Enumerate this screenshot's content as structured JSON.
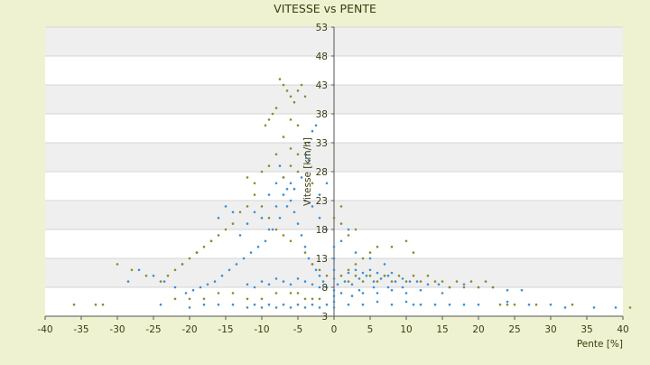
{
  "chart_data": {
    "type": "scatter",
    "title": "VITESSE vs PENTE",
    "xlabel": "Pente [%]",
    "ylabel": "Vitesse [km/h]",
    "xlim": [
      -40,
      40
    ],
    "ylim": [
      3,
      53
    ],
    "x_ticks": [
      -40,
      -35,
      -30,
      -25,
      -20,
      -15,
      -10,
      -5,
      0,
      5,
      10,
      15,
      20,
      25,
      30,
      35,
      40
    ],
    "y_ticks": [
      3,
      8,
      13,
      18,
      23,
      28,
      33,
      38,
      43,
      48,
      53
    ],
    "grid": true,
    "banded_background": true,
    "legend": "none",
    "series": [
      {
        "color": "#3a8fd6",
        "points": [
          [
            -1.0,
            8
          ],
          [
            0.5,
            8.5
          ],
          [
            1.5,
            9
          ],
          [
            2.5,
            8.5
          ],
          [
            3.5,
            9.5
          ],
          [
            4.5,
            10
          ],
          [
            5.5,
            9
          ],
          [
            6.5,
            9.5
          ],
          [
            7.5,
            10
          ],
          [
            8.5,
            9
          ],
          [
            9.5,
            9.5
          ],
          [
            10.5,
            9
          ],
          [
            11.5,
            9
          ],
          [
            13,
            8.5
          ],
          [
            14.5,
            8.5
          ],
          [
            16,
            8
          ],
          [
            18,
            8.5
          ],
          [
            20,
            8
          ],
          [
            22,
            8
          ],
          [
            24,
            7.5
          ],
          [
            26,
            7.5
          ],
          [
            2,
            10.5
          ],
          [
            3,
            11
          ],
          [
            4,
            10.5
          ],
          [
            5,
            11
          ],
          [
            6,
            10.5
          ],
          [
            7,
            10
          ],
          [
            8,
            10.5
          ],
          [
            3.5,
            7.5
          ],
          [
            5.5,
            8
          ],
          [
            7.5,
            8
          ],
          [
            9.5,
            8
          ],
          [
            1,
            7
          ],
          [
            2.5,
            6.5
          ],
          [
            4,
            7
          ],
          [
            6,
            7
          ],
          [
            8,
            7.5
          ],
          [
            10,
            7
          ],
          [
            12,
            7.5
          ],
          [
            15,
            7
          ],
          [
            -1.5,
            9
          ],
          [
            -2,
            10
          ],
          [
            -2.5,
            11
          ],
          [
            -3,
            12
          ],
          [
            -3.5,
            13
          ],
          [
            -4,
            15
          ],
          [
            -4.5,
            17
          ],
          [
            -5,
            19
          ],
          [
            -5.5,
            21
          ],
          [
            -6,
            23
          ],
          [
            -6.5,
            25
          ],
          [
            -7,
            27
          ],
          [
            -7.5,
            29
          ],
          [
            -4,
            31
          ],
          [
            -3.5,
            33
          ],
          [
            -3,
            35
          ],
          [
            -2.5,
            36
          ],
          [
            -3.5,
            30
          ],
          [
            -4.5,
            27
          ],
          [
            -5.5,
            25
          ],
          [
            -6.5,
            22
          ],
          [
            -7.5,
            20
          ],
          [
            -8.5,
            18
          ],
          [
            -9.5,
            16
          ],
          [
            -10.5,
            15
          ],
          [
            -11.5,
            14
          ],
          [
            -12.5,
            13
          ],
          [
            -13.5,
            12
          ],
          [
            -14.5,
            11
          ],
          [
            -15.5,
            10
          ],
          [
            -16.5,
            9
          ],
          [
            -17.5,
            8.5
          ],
          [
            -18.5,
            8
          ],
          [
            -19.5,
            7.5
          ],
          [
            -20.5,
            7
          ],
          [
            -22,
            8
          ],
          [
            -23.5,
            9
          ],
          [
            -25,
            10
          ],
          [
            -27,
            11
          ],
          [
            -28.5,
            9
          ],
          [
            -14,
            21
          ],
          [
            -15,
            22
          ],
          [
            -16,
            20
          ],
          [
            -12,
            19
          ],
          [
            -11,
            21
          ],
          [
            -9,
            24
          ],
          [
            -8,
            26
          ],
          [
            -10,
            20
          ],
          [
            -13,
            17
          ],
          [
            -17,
            16
          ],
          [
            -19,
            14
          ],
          [
            -21,
            12
          ],
          [
            -2,
            8
          ],
          [
            -3,
            8.5
          ],
          [
            -4,
            9
          ],
          [
            -5,
            9.5
          ],
          [
            -6,
            8.5
          ],
          [
            -7,
            9
          ],
          [
            -8,
            9.5
          ],
          [
            -9,
            8.5
          ],
          [
            -10,
            9
          ],
          [
            -11,
            8
          ],
          [
            -12,
            8.5
          ],
          [
            -1,
            5
          ],
          [
            -2,
            4.5
          ],
          [
            -3,
            5
          ],
          [
            -4,
            4.5
          ],
          [
            -5,
            5
          ],
          [
            -6,
            4.5
          ],
          [
            -7,
            5
          ],
          [
            -8,
            4.5
          ],
          [
            -9,
            5
          ],
          [
            -10,
            4.5
          ],
          [
            -11,
            5
          ],
          [
            -12,
            4.5
          ],
          [
            -14,
            5
          ],
          [
            -16,
            5
          ],
          [
            -18,
            5
          ],
          [
            -20,
            4.5
          ],
          [
            -24,
            5
          ],
          [
            0,
            4.5
          ],
          [
            0,
            5.5
          ],
          [
            0,
            6.5
          ],
          [
            0,
            7.5
          ],
          [
            0,
            9.5
          ],
          [
            0,
            11
          ],
          [
            0,
            13
          ],
          [
            0,
            15
          ],
          [
            2,
            5
          ],
          [
            4,
            5
          ],
          [
            6,
            5.5
          ],
          [
            8,
            5
          ],
          [
            10,
            5.5
          ],
          [
            11,
            5
          ],
          [
            12,
            5
          ],
          [
            14,
            5
          ],
          [
            16,
            5
          ],
          [
            18,
            5
          ],
          [
            20,
            5
          ],
          [
            24,
            5.5
          ],
          [
            27,
            5
          ],
          [
            30,
            5
          ],
          [
            32,
            4.5
          ],
          [
            36,
            4.5
          ],
          [
            39,
            4.5
          ],
          [
            3,
            14
          ],
          [
            5,
            13
          ],
          [
            7,
            12
          ],
          [
            2,
            18
          ],
          [
            1,
            16
          ],
          [
            -1,
            18
          ],
          [
            -2,
            20
          ],
          [
            -3,
            22
          ],
          [
            -2,
            24
          ],
          [
            -1,
            26
          ],
          [
            -4,
            23
          ],
          [
            -6,
            26
          ],
          [
            -7,
            24
          ],
          [
            -8,
            22
          ],
          [
            -9,
            18
          ]
        ]
      },
      {
        "color": "#8a8a2e",
        "points": [
          [
            -7.5,
            44
          ],
          [
            -7,
            43
          ],
          [
            -6.5,
            42
          ],
          [
            -6,
            41
          ],
          [
            -5.5,
            40
          ],
          [
            -5,
            42
          ],
          [
            -4.5,
            43
          ],
          [
            -4,
            41
          ],
          [
            -8,
            39
          ],
          [
            -8.5,
            38
          ],
          [
            -9,
            37
          ],
          [
            -9.5,
            36
          ],
          [
            -6,
            37
          ],
          [
            -5,
            36
          ],
          [
            -7,
            34
          ],
          [
            -6,
            32
          ],
          [
            -5,
            31
          ],
          [
            -4,
            33
          ],
          [
            -8,
            31
          ],
          [
            -9,
            29
          ],
          [
            -10,
            28
          ],
          [
            -7,
            27
          ],
          [
            -6,
            29
          ],
          [
            -5,
            28
          ],
          [
            -3,
            26
          ],
          [
            -11,
            24
          ],
          [
            -12,
            22
          ],
          [
            -13,
            21
          ],
          [
            -10,
            22
          ],
          [
            -9,
            20
          ],
          [
            -8,
            18
          ],
          [
            -7,
            17
          ],
          [
            -6,
            16
          ],
          [
            -14,
            19
          ],
          [
            -15,
            18
          ],
          [
            -16,
            17
          ],
          [
            -17,
            16
          ],
          [
            -18,
            15
          ],
          [
            -19,
            14
          ],
          [
            -20,
            13
          ],
          [
            -21,
            12
          ],
          [
            -22,
            11
          ],
          [
            -23,
            10
          ],
          [
            -24,
            9
          ],
          [
            -26,
            10
          ],
          [
            -28,
            11
          ],
          [
            -30,
            12
          ],
          [
            -32,
            5
          ],
          [
            -33,
            5
          ],
          [
            -36,
            5
          ],
          [
            -4,
            14
          ],
          [
            -3,
            12
          ],
          [
            -2,
            11
          ],
          [
            -1,
            10
          ],
          [
            1,
            10
          ],
          [
            2,
            11
          ],
          [
            3,
            12
          ],
          [
            4,
            13
          ],
          [
            5,
            14
          ],
          [
            6,
            15
          ],
          [
            8,
            15
          ],
          [
            10,
            16
          ],
          [
            11,
            14
          ],
          [
            2,
            17
          ],
          [
            3,
            18
          ],
          [
            1,
            19
          ],
          [
            0,
            20
          ],
          [
            1,
            22
          ],
          [
            2,
            9
          ],
          [
            3,
            10
          ],
          [
            4,
            9
          ],
          [
            5,
            10
          ],
          [
            6,
            9
          ],
          [
            7,
            10
          ],
          [
            8,
            9
          ],
          [
            9,
            10
          ],
          [
            10,
            9
          ],
          [
            11,
            10
          ],
          [
            12,
            9
          ],
          [
            13,
            10
          ],
          [
            14,
            9
          ],
          [
            15,
            9
          ],
          [
            16,
            8
          ],
          [
            17,
            9
          ],
          [
            18,
            8
          ],
          [
            19,
            9
          ],
          [
            20,
            8
          ],
          [
            21,
            9
          ],
          [
            22,
            8
          ],
          [
            23,
            5
          ],
          [
            24,
            5
          ],
          [
            25,
            5
          ],
          [
            28,
            5
          ],
          [
            33,
            5
          ],
          [
            41,
            4.5
          ],
          [
            -2,
            6
          ],
          [
            -3,
            6
          ],
          [
            -4,
            6
          ],
          [
            -5,
            7
          ],
          [
            -6,
            7
          ],
          [
            -8,
            7
          ],
          [
            -10,
            6
          ],
          [
            -12,
            6
          ],
          [
            -14,
            7
          ],
          [
            -16,
            7
          ],
          [
            -18,
            6
          ],
          [
            -20,
            6
          ],
          [
            -22,
            6
          ],
          [
            -12,
            27
          ],
          [
            -11,
            26
          ]
        ]
      }
    ]
  }
}
